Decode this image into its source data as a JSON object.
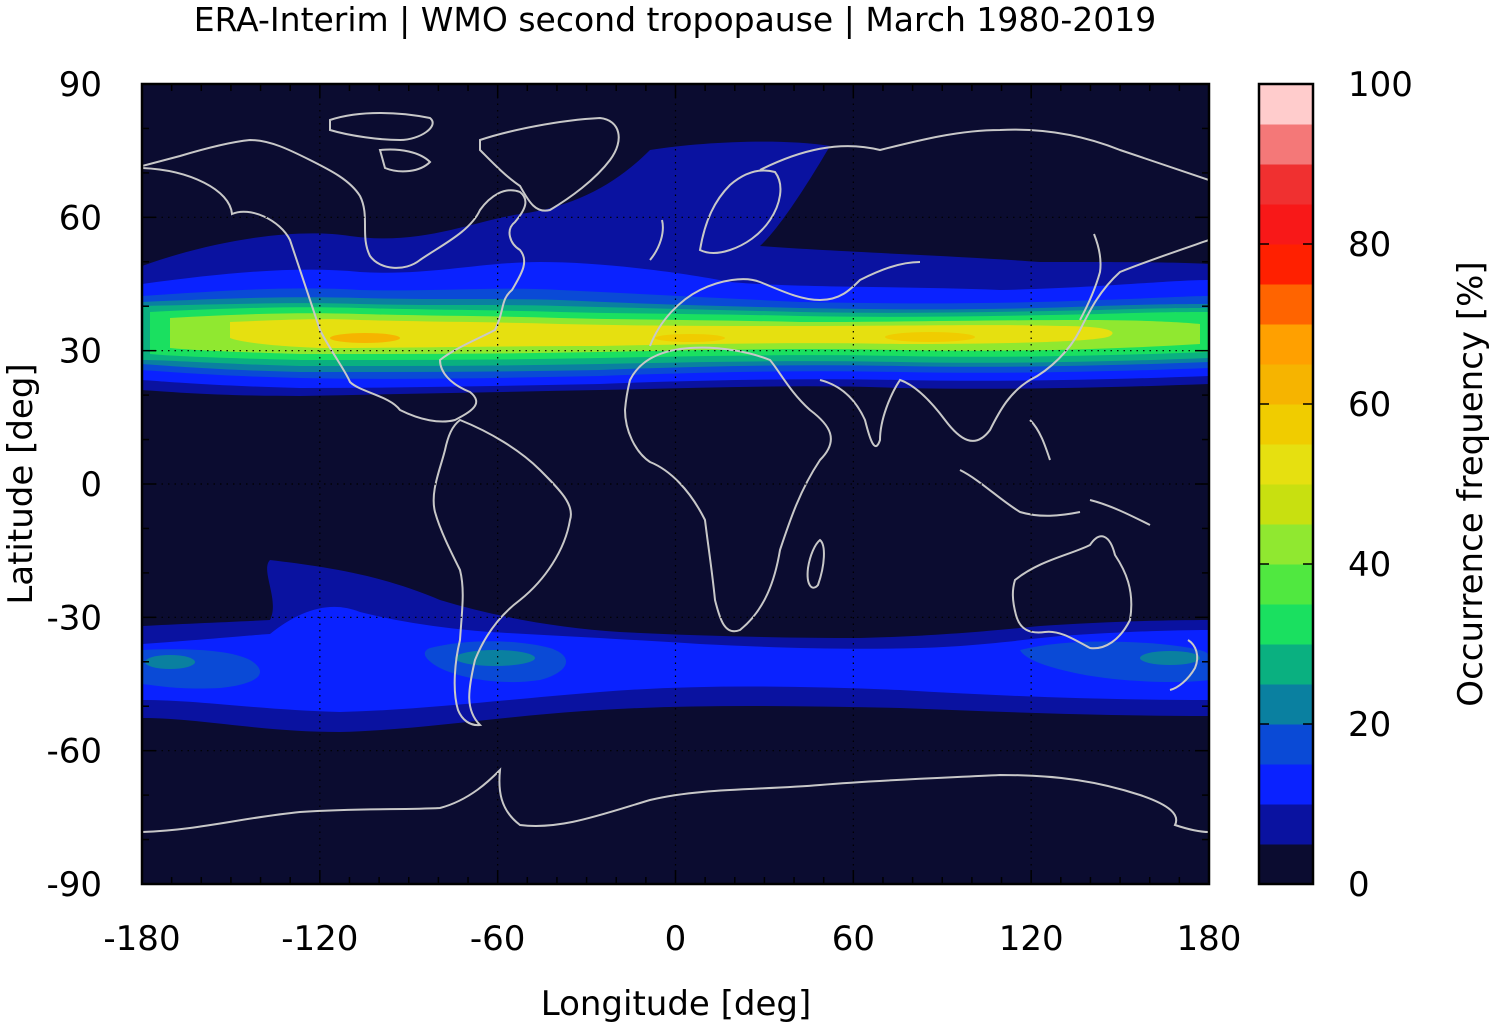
{
  "chart_data": {
    "type": "heatmap",
    "title": "ERA-Interim | WMO second tropopause | March 1980-2019",
    "xlabel": "Longitude [deg]",
    "ylabel": "Latitude [deg]",
    "colorbar_label": "Occurrence frequency [%]",
    "xlim": [
      -180,
      180
    ],
    "ylim": [
      -90,
      90
    ],
    "xticks": [
      "-180",
      "-120",
      "-60",
      "0",
      "60",
      "120",
      "180"
    ],
    "yticks": [
      "90",
      "60",
      "30",
      "0",
      "-30",
      "-60",
      "-90"
    ],
    "colorbar_ticks": [
      "100",
      "80",
      "60",
      "40",
      "20",
      "0"
    ],
    "colorbar_range": [
      0,
      100
    ],
    "grid": "dotted",
    "background_color": "#0b0c30",
    "coastline_color": "#c8c8c8",
    "colormap": [
      {
        "from": 0,
        "to": 5,
        "color": "#0b0c30"
      },
      {
        "from": 5,
        "to": 10,
        "color": "#0a12a0"
      },
      {
        "from": 10,
        "to": 15,
        "color": "#0a22ff"
      },
      {
        "from": 15,
        "to": 20,
        "color": "#0a4ad6"
      },
      {
        "from": 20,
        "to": 25,
        "color": "#0a80a0"
      },
      {
        "from": 25,
        "to": 30,
        "color": "#0ab080"
      },
      {
        "from": 30,
        "to": 35,
        "color": "#1ae060"
      },
      {
        "from": 35,
        "to": 40,
        "color": "#50e840"
      },
      {
        "from": 40,
        "to": 45,
        "color": "#90e830"
      },
      {
        "from": 45,
        "to": 50,
        "color": "#c8e010"
      },
      {
        "from": 50,
        "to": 55,
        "color": "#e6e010"
      },
      {
        "from": 55,
        "to": 60,
        "color": "#f0cc00"
      },
      {
        "from": 60,
        "to": 65,
        "color": "#f6b400"
      },
      {
        "from": 65,
        "to": 70,
        "color": "#ffa000"
      },
      {
        "from": 70,
        "to": 75,
        "color": "#ff6400"
      },
      {
        "from": 75,
        "to": 80,
        "color": "#ff2000"
      },
      {
        "from": 80,
        "to": 85,
        "color": "#f81818"
      },
      {
        "from": 85,
        "to": 90,
        "color": "#f03030"
      },
      {
        "from": 90,
        "to": 95,
        "color": "#f47878"
      },
      {
        "from": 95,
        "to": 100,
        "color": "#ffcccc"
      }
    ],
    "zonal_profile_northern_hemisphere": [
      {
        "lat": 62,
        "value": 3
      },
      {
        "lat": 52,
        "value": 6
      },
      {
        "lat": 46,
        "value": 12
      },
      {
        "lat": 42,
        "value": 22
      },
      {
        "lat": 38,
        "value": 40
      },
      {
        "lat": 34,
        "value": 55
      },
      {
        "lat": 31,
        "value": 58
      },
      {
        "lat": 28,
        "value": 45
      },
      {
        "lat": 25,
        "value": 22
      },
      {
        "lat": 22,
        "value": 8
      }
    ],
    "zonal_profile_southern_hemisphere": [
      {
        "lat": -30,
        "value": 5
      },
      {
        "lat": -33,
        "value": 12
      },
      {
        "lat": -38,
        "value": 17
      },
      {
        "lat": -43,
        "value": 14
      },
      {
        "lat": -48,
        "value": 10
      },
      {
        "lat": -52,
        "value": 6
      },
      {
        "lat": -55,
        "value": 3
      }
    ]
  }
}
